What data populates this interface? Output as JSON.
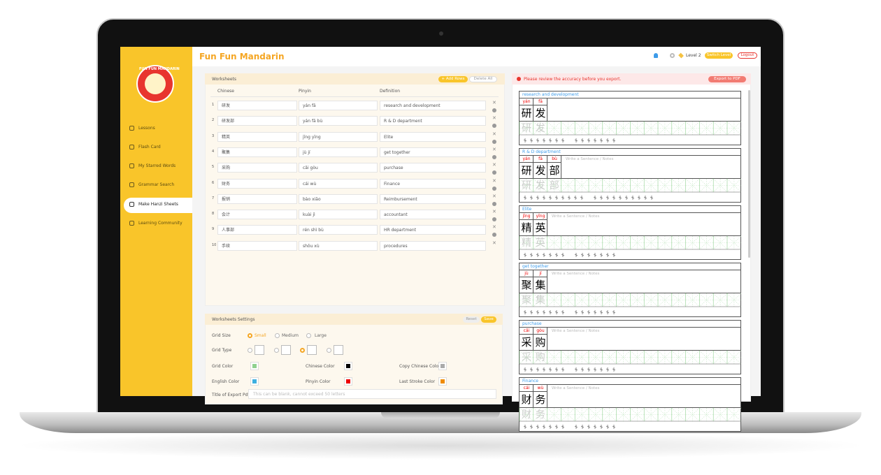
{
  "app": {
    "title": "Fun Fun Mandarin",
    "logo": "FUN FUN MANDARIN"
  },
  "header": {
    "level": "Level 2",
    "switch": "Switch Level",
    "logout": "Logout"
  },
  "sidebar": {
    "items": [
      "Lessons",
      "Flash Card",
      "My Starred Words",
      "Grammar Search",
      "Make Hanzi Sheets",
      "Learning Community"
    ]
  },
  "worksheets": {
    "title": "Worksheets",
    "add": "+ Add Rows",
    "delete": "Delete All",
    "columns": [
      "Chinese",
      "Pinyin",
      "Definition"
    ],
    "rows": [
      {
        "no": "1",
        "chinese": "研发",
        "pinyin": "yán fā",
        "definition": "research and development"
      },
      {
        "no": "2",
        "chinese": "研发部",
        "pinyin": "yán fā bù",
        "definition": "R & D department"
      },
      {
        "no": "3",
        "chinese": "精英",
        "pinyin": "jīng yīng",
        "definition": "Elite"
      },
      {
        "no": "4",
        "chinese": "聚集",
        "pinyin": "jù jí",
        "definition": "get together"
      },
      {
        "no": "5",
        "chinese": "采购",
        "pinyin": "cǎi gòu",
        "definition": "purchase"
      },
      {
        "no": "6",
        "chinese": "财务",
        "pinyin": "cái wù",
        "definition": "Finance"
      },
      {
        "no": "7",
        "chinese": "报销",
        "pinyin": "bào xiāo",
        "definition": "Reimbursement"
      },
      {
        "no": "8",
        "chinese": "会计",
        "pinyin": "kuài jì",
        "definition": "accountant"
      },
      {
        "no": "9",
        "chinese": "人事部",
        "pinyin": "rén shì bù",
        "definition": "HR department"
      },
      {
        "no": "10",
        "chinese": "手续",
        "pinyin": "shǒu xù",
        "definition": "procedures"
      }
    ]
  },
  "settings": {
    "title": "Worksheets Settings",
    "reset": "Reset",
    "save": "Save",
    "grid_size": "Grid Size",
    "sizes": [
      "Small",
      "Medium",
      "Large"
    ],
    "grid_type": "Grid Type",
    "grid_color": "Grid Color",
    "chinese_color": "Chinese Color",
    "copy_color": "Copy Chinese Color",
    "english_color": "English Color",
    "pinyin_color": "Pinyin Color",
    "last_stroke_color": "Last Stroke Color",
    "pdf_title": "Title of Export Pdf",
    "pdf_placeholder": "This can be blank, cannot exceed 50 letters"
  },
  "preview": {
    "warning": "Please review the accuracy before you export.",
    "export": "Export to PDF",
    "notes": "Write a Sentence / Notes",
    "cards": [
      {
        "definition": "research and development",
        "chars": [
          {
            "hanzi": "研",
            "pinyin": "yán"
          },
          {
            "hanzi": "发",
            "pinyin": "fā"
          }
        ]
      },
      {
        "definition": "R & D department",
        "chars": [
          {
            "hanzi": "研",
            "pinyin": "yán"
          },
          {
            "hanzi": "发",
            "pinyin": "fā"
          },
          {
            "hanzi": "部",
            "pinyin": "bù"
          }
        ]
      },
      {
        "definition": "Elite",
        "chars": [
          {
            "hanzi": "精",
            "pinyin": "jīng"
          },
          {
            "hanzi": "英",
            "pinyin": "yīng"
          }
        ]
      },
      {
        "definition": "get together",
        "chars": [
          {
            "hanzi": "聚",
            "pinyin": "jù"
          },
          {
            "hanzi": "集",
            "pinyin": "jí"
          }
        ]
      },
      {
        "definition": "purchase",
        "chars": [
          {
            "hanzi": "采",
            "pinyin": "cǎi"
          },
          {
            "hanzi": "购",
            "pinyin": "gòu"
          }
        ]
      },
      {
        "definition": "Finance",
        "chars": [
          {
            "hanzi": "财",
            "pinyin": "cái"
          },
          {
            "hanzi": "务",
            "pinyin": "wù"
          }
        ]
      }
    ]
  }
}
